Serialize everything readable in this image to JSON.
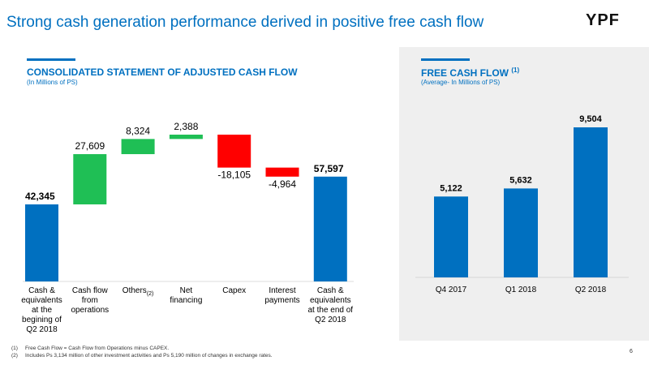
{
  "header": {
    "title": "Strong cash generation performance derived in positive free cash flow",
    "logo": "YPF"
  },
  "chart_data": [
    {
      "type": "waterfall",
      "title": "CONSOLIDATED STATEMENT OF ADJUSTED CASH FLOW",
      "subtitle": "(In Millions of PS)",
      "categories": [
        "Cash & equivalents at the begining of Q2 2018",
        "Cash flow from operations",
        "Others",
        "Net financing",
        "Capex",
        "Interest payments",
        "Cash & equivalents at the end of Q2 2018"
      ],
      "category_notes": [
        null,
        null,
        "(2)",
        null,
        null,
        null,
        null
      ],
      "values": [
        42345,
        27609,
        8324,
        2388,
        -18105,
        -4964,
        57597
      ],
      "value_labels": [
        "42,345",
        "27,609",
        "8,324",
        "2,388",
        "-18,105",
        "-4,964",
        "57,597"
      ],
      "colors": [
        "#0070c0",
        "#1fbf55",
        "#1fbf55",
        "#1fbf55",
        "#ff0000",
        "#ff0000",
        "#0070c0"
      ]
    },
    {
      "type": "bar",
      "title": "FREE CASH FLOW",
      "title_note": "(1)",
      "subtitle": "(Average- In Millions of PS)",
      "categories": [
        "Q4 2017",
        "Q1 2018",
        "Q2 2018"
      ],
      "values": [
        5122,
        5632,
        9504
      ],
      "value_labels": [
        "5,122",
        "5,632",
        "9,504"
      ],
      "color": "#0070c0"
    }
  ],
  "footnotes": [
    {
      "marker": "(1)",
      "text": "Free Cash Flow = Cash Flow from Operations minus CAPEX."
    },
    {
      "marker": "(2)",
      "text": "Includes Ps 3,134 million of other investment activities and Ps 5,190 million of changes in exchange rates."
    }
  ],
  "page_number": "6"
}
